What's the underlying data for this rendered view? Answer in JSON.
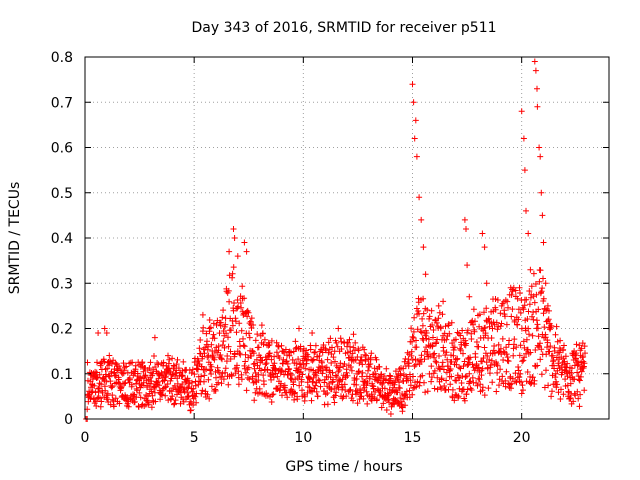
{
  "chart_data": {
    "type": "scatter",
    "title": "Day 343 of 2016, SRMTID for receiver p511",
    "xlabel": "GPS time / hours",
    "ylabel": "SRMTID / TECUs",
    "xlim": [
      0,
      24
    ],
    "ylim": [
      0,
      0.8
    ],
    "grid": true,
    "marker": "+",
    "color": "#ff0000",
    "x_ticks": [
      "0",
      "5",
      "10",
      "15",
      "20"
    ],
    "y_ticks": [
      "0",
      "0.1",
      "0.2",
      "0.3",
      "0.4",
      "0.5",
      "0.6",
      "0.7",
      "0.8"
    ],
    "baseline_profile": {
      "x": [
        0,
        0.5,
        1.0,
        2.0,
        3.0,
        4.0,
        4.8,
        5.2,
        5.6,
        6.0,
        6.5,
        6.8,
        7.2,
        7.6,
        8.5,
        9.5,
        10.5,
        11.5,
        12.5,
        13.0,
        13.5,
        14.0,
        14.6,
        15.0,
        15.2,
        15.5,
        16.0,
        16.5,
        17.0,
        17.5,
        18.0,
        18.5,
        19.0,
        19.5,
        20.0,
        20.5,
        20.8,
        21.2,
        21.6,
        22.0,
        22.5,
        22.9
      ],
      "y": [
        0.07,
        0.08,
        0.09,
        0.07,
        0.08,
        0.08,
        0.07,
        0.1,
        0.15,
        0.13,
        0.18,
        0.22,
        0.18,
        0.14,
        0.11,
        0.1,
        0.1,
        0.11,
        0.11,
        0.09,
        0.07,
        0.06,
        0.08,
        0.13,
        0.17,
        0.16,
        0.15,
        0.14,
        0.12,
        0.13,
        0.15,
        0.16,
        0.18,
        0.18,
        0.17,
        0.19,
        0.22,
        0.16,
        0.12,
        0.1,
        0.1,
        0.1
      ]
    },
    "spikes": [
      {
        "x": 0.05,
        "y": 0.0
      },
      {
        "x": 0.1,
        "y": 0.0
      },
      {
        "x": 0.6,
        "y": 0.19
      },
      {
        "x": 0.9,
        "y": 0.2
      },
      {
        "x": 1.0,
        "y": 0.19
      },
      {
        "x": 3.2,
        "y": 0.18
      },
      {
        "x": 3.8,
        "y": 0.14
      },
      {
        "x": 5.4,
        "y": 0.23
      },
      {
        "x": 5.7,
        "y": 0.2
      },
      {
        "x": 6.6,
        "y": 0.37
      },
      {
        "x": 6.8,
        "y": 0.42
      },
      {
        "x": 6.85,
        "y": 0.4
      },
      {
        "x": 7.0,
        "y": 0.36
      },
      {
        "x": 7.3,
        "y": 0.39
      },
      {
        "x": 7.4,
        "y": 0.37
      },
      {
        "x": 9.8,
        "y": 0.2
      },
      {
        "x": 10.4,
        "y": 0.19
      },
      {
        "x": 11.6,
        "y": 0.2
      },
      {
        "x": 15.0,
        "y": 0.74
      },
      {
        "x": 15.05,
        "y": 0.7
      },
      {
        "x": 15.1,
        "y": 0.62
      },
      {
        "x": 15.15,
        "y": 0.66
      },
      {
        "x": 15.2,
        "y": 0.58
      },
      {
        "x": 15.3,
        "y": 0.49
      },
      {
        "x": 15.4,
        "y": 0.44
      },
      {
        "x": 15.5,
        "y": 0.38
      },
      {
        "x": 15.6,
        "y": 0.32
      },
      {
        "x": 16.2,
        "y": 0.25
      },
      {
        "x": 16.4,
        "y": 0.26
      },
      {
        "x": 17.4,
        "y": 0.44
      },
      {
        "x": 17.45,
        "y": 0.42
      },
      {
        "x": 17.5,
        "y": 0.34
      },
      {
        "x": 17.6,
        "y": 0.27
      },
      {
        "x": 18.2,
        "y": 0.41
      },
      {
        "x": 18.3,
        "y": 0.38
      },
      {
        "x": 18.4,
        "y": 0.3
      },
      {
        "x": 19.9,
        "y": 0.29
      },
      {
        "x": 20.0,
        "y": 0.68
      },
      {
        "x": 20.1,
        "y": 0.62
      },
      {
        "x": 20.15,
        "y": 0.55
      },
      {
        "x": 20.2,
        "y": 0.46
      },
      {
        "x": 20.3,
        "y": 0.41
      },
      {
        "x": 20.4,
        "y": 0.33
      },
      {
        "x": 20.6,
        "y": 0.79
      },
      {
        "x": 20.65,
        "y": 0.77
      },
      {
        "x": 20.7,
        "y": 0.73
      },
      {
        "x": 20.72,
        "y": 0.69
      },
      {
        "x": 20.8,
        "y": 0.6
      },
      {
        "x": 20.85,
        "y": 0.58
      },
      {
        "x": 20.9,
        "y": 0.5
      },
      {
        "x": 20.95,
        "y": 0.45
      },
      {
        "x": 21.0,
        "y": 0.39
      },
      {
        "x": 21.1,
        "y": 0.3
      },
      {
        "x": 21.2,
        "y": 0.25
      },
      {
        "x": 22.4,
        "y": 0.15
      },
      {
        "x": 22.7,
        "y": 0.14
      }
    ]
  }
}
